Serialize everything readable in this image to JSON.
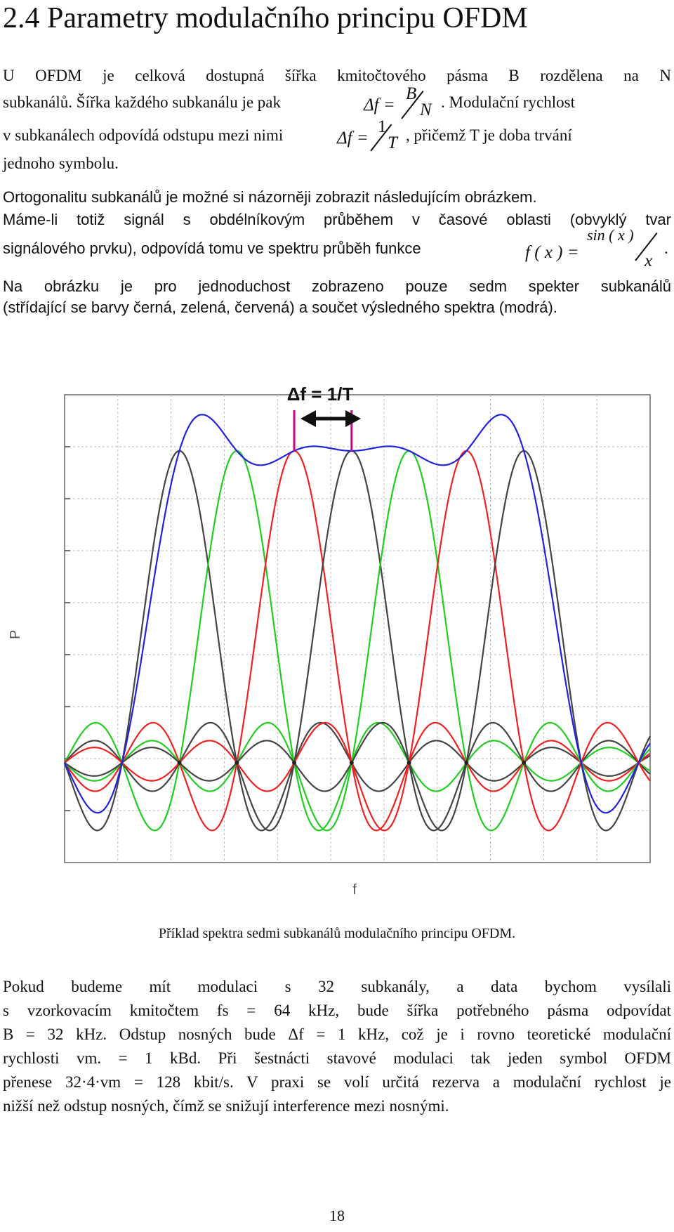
{
  "heading": "2.4 Parametry modulačního principu OFDM",
  "para1": {
    "line1": "U OFDM je celková dostupná šířka kmitočtového pásma B rozdělena na N",
    "line2_a": "subkanálů. Šířka každého subkanálu je pak",
    "line2_b": ". Modulační rychlost",
    "line3_a": "v subkanálech odpovídá odstupu mezi nimi",
    "line3_b": ", přičemž T je doba trvání",
    "line4": "jednoho symbolu.",
    "formula1": {
      "lhs": "Δf =",
      "num": "B",
      "den": "N"
    },
    "formula2": {
      "lhs": "Δf =",
      "num": "1",
      "den": "T"
    }
  },
  "para2": {
    "line1": "Ortogonalitu subkanálů je možné si názorněji zobrazit následujícím obrázkem.",
    "line2": "Máme-li totiž signál s obdélníkovým průběhem v časové oblasti (obvyklý tvar",
    "line3_a": "signálového prvku), odpovídá tomu ve spektru průběh funkce",
    "line3_b": ".",
    "formula": {
      "lhs": "f ( x ) =",
      "num": "sin ( x )",
      "den": "x"
    },
    "line4": "Na obrázku je pro jednoduchost zobrazeno pouze sedm spekter subkanálů",
    "line5": "(střídající se barvy černá, zelená, červená) a součet výsledného spektra (modrá)."
  },
  "chart_data": {
    "type": "line",
    "annotation": "Δf = 1/T",
    "xlabel": "f",
    "ylabel": "P",
    "grid": true,
    "subcarrier_centers": [
      1,
      2,
      3,
      4,
      5,
      6,
      7
    ],
    "xlim": [
      -1.0,
      9.2
    ],
    "ylim": [
      -0.32,
      1.18
    ],
    "series": [
      {
        "function": "sinc",
        "center": 1,
        "color": "#444444"
      },
      {
        "function": "sinc",
        "center": 2,
        "color": "#22cc22"
      },
      {
        "function": "sinc",
        "center": 3,
        "color": "#ee2222"
      },
      {
        "function": "sinc",
        "center": 4,
        "color": "#444444"
      },
      {
        "function": "sinc",
        "center": 5,
        "color": "#22cc22"
      },
      {
        "function": "sinc",
        "center": 6,
        "color": "#ee2222"
      },
      {
        "function": "sinc",
        "center": 7,
        "color": "#444444"
      },
      {
        "function": "sum",
        "color": "#2222dd"
      }
    ],
    "markers": [
      3,
      4
    ],
    "marker_color": "#cc0088"
  },
  "caption": "Příklad spektra sedmi subkanálů modulačního principu OFDM.",
  "para3": [
    "Pokud budeme mít modulaci s 32 subkanály, a data bychom vysílali",
    "s vzorkovacím kmitočtem fs = 64 kHz, bude šířka potřebného pásma odpovídat",
    "B = 32 kHz. Odstup nosných bude Δf = 1 kHz, což je i rovno teoretické modulační",
    "rychlosti vm. = 1 kBd. Při šestnácti stavové modulaci tak jeden symbol OFDM",
    "přenese 32·4·vm = 128 kbit/s. V praxi se volí určitá rezerva a modulační rychlost je",
    "nižší než odstup nosných, čímž se snižují interference mezi nosnými."
  ],
  "page_number": "18"
}
